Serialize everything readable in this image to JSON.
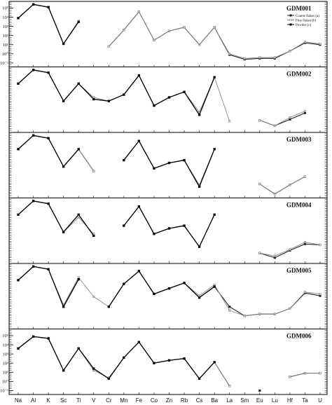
{
  "chart_data": {
    "type": "line",
    "categories": [
      "Na",
      "Al",
      "K",
      "Sc",
      "Ti",
      "V",
      "Cr",
      "Mn",
      "Fe",
      "Co",
      "Zn",
      "Rb",
      "Cs",
      "Ba",
      "La",
      "Sm",
      "Eu",
      "Lu",
      "Hf",
      "Ta",
      "U"
    ],
    "ytick_labels": [
      "10⁵",
      "10⁴",
      "10³",
      "10²",
      "10¹",
      "10⁰",
      "10⁻¹"
    ],
    "ytick_values": [
      5,
      4,
      3,
      2,
      1,
      0,
      -1
    ],
    "legend": [
      {
        "label": "Coarse flakes (a)",
        "color": "#222222"
      },
      {
        "label": "Fine flakes (b)",
        "color": "#888888"
      },
      {
        "label": "Powder (c)",
        "color": "#000000"
      }
    ],
    "panels": [
      {
        "title": "GDM001",
        "ylim": [
          -1.2,
          5.5
        ],
        "series": [
          {
            "values": [
              3.9,
              5.4,
              5.1,
              1.1,
              3.5,
              null,
              0.8,
              2.6,
              4.6,
              1.5,
              2.5,
              2.9,
              1.0,
              2.9,
              -0.1,
              -0.6,
              -0.5,
              -0.5,
              0.3,
              1.2,
              1.0
            ]
          },
          {
            "values": [
              3.9,
              5.4,
              5.1,
              1.1,
              3.6,
              null,
              0.8,
              2.6,
              4.6,
              1.5,
              2.5,
              2.9,
              1.0,
              2.9,
              0.0,
              -0.5,
              -0.4,
              -0.4,
              0.3,
              1.3,
              1.1
            ]
          },
          {
            "values": [
              3.9,
              5.4,
              5.1,
              1.1,
              3.5,
              null,
              null,
              null,
              null,
              null,
              null,
              null,
              null,
              null,
              null,
              null,
              null,
              null,
              null,
              null,
              null
            ]
          }
        ]
      },
      {
        "title": "GDM002",
        "ylim": [
          -1.2,
          5.5
        ],
        "series": [
          {
            "values": [
              3.9,
              5.4,
              5.1,
              2.0,
              3.9,
              2.2,
              2.0,
              2.7,
              4.8,
              1.5,
              2.4,
              3.0,
              0.5,
              4.6,
              null,
              null,
              -0.1,
              -0.7,
              0.0,
              0.7,
              null
            ]
          },
          {
            "values": [
              3.9,
              5.4,
              5.1,
              2.0,
              3.9,
              2.4,
              2.0,
              2.7,
              4.8,
              1.5,
              2.4,
              3.0,
              0.8,
              4.6,
              -0.2,
              null,
              -0.1,
              -0.7,
              0.2,
              0.9,
              null
            ]
          },
          {
            "values": [
              3.9,
              5.4,
              5.1,
              2.0,
              3.9,
              2.2,
              2.0,
              2.7,
              4.8,
              1.5,
              2.4,
              3.0,
              0.5,
              4.6,
              null,
              null,
              null,
              null,
              null,
              null,
              null
            ]
          }
        ]
      },
      {
        "title": "GDM003",
        "ylim": [
          -1.2,
          5.5
        ],
        "series": [
          {
            "values": [
              3.9,
              5.4,
              5.1,
              2.0,
              3.9,
              1.5,
              null,
              2.7,
              4.8,
              1.8,
              2.4,
              2.7,
              -0.2,
              3.9,
              null,
              null,
              0.1,
              -1.0,
              0.0,
              0.9,
              null
            ]
          },
          {
            "values": [
              3.9,
              5.4,
              5.1,
              2.0,
              3.9,
              1.5,
              null,
              2.7,
              4.8,
              1.8,
              2.4,
              2.7,
              0.0,
              3.9,
              null,
              null,
              0.1,
              -1.0,
              0.0,
              0.9,
              null
            ]
          },
          {
            "values": [
              3.9,
              5.4,
              5.1,
              2.0,
              3.9,
              null,
              null,
              2.7,
              4.8,
              1.8,
              2.4,
              2.7,
              -0.2,
              3.9,
              null,
              null,
              null,
              null,
              null,
              null,
              null
            ]
          }
        ]
      },
      {
        "title": "GDM004",
        "ylim": [
          -1.2,
          5.5
        ],
        "series": [
          {
            "values": [
              3.9,
              5.4,
              5.1,
              2.0,
              3.9,
              1.6,
              null,
              2.7,
              4.8,
              1.8,
              2.4,
              2.7,
              0.4,
              3.9,
              null,
              null,
              -0.3,
              -0.8,
              0.0,
              0.7,
              0.6
            ]
          },
          {
            "values": [
              3.9,
              5.4,
              5.1,
              2.0,
              3.6,
              1.8,
              null,
              2.7,
              4.8,
              1.8,
              2.4,
              2.7,
              0.4,
              3.9,
              null,
              null,
              -0.3,
              -0.6,
              0.1,
              0.9,
              0.6
            ]
          },
          {
            "values": [
              3.9,
              5.4,
              5.1,
              2.0,
              3.9,
              1.6,
              null,
              2.7,
              4.8,
              1.8,
              2.4,
              2.7,
              0.4,
              3.9,
              null,
              null,
              null,
              null,
              null,
              null,
              null
            ]
          }
        ]
      },
      {
        "title": "GDM005",
        "ylim": [
          -1.2,
          5.5
        ],
        "series": [
          {
            "values": [
              3.9,
              5.4,
              5.1,
              1.0,
              4.0,
              null,
              1.0,
              3.5,
              4.9,
              2.4,
              3.0,
              3.6,
              2.0,
              3.2,
              1.0,
              0.0,
              0.2,
              0.2,
              0.8,
              2.5,
              2.2
            ]
          },
          {
            "values": [
              3.9,
              5.4,
              5.1,
              1.2,
              4.2,
              2.1,
              1.0,
              3.5,
              4.9,
              2.4,
              3.0,
              3.6,
              2.2,
              3.4,
              0.6,
              0.0,
              0.2,
              0.2,
              0.8,
              2.6,
              2.4
            ]
          },
          {
            "values": [
              3.9,
              5.4,
              5.1,
              1.0,
              4.0,
              null,
              1.0,
              3.5,
              4.9,
              2.4,
              3.0,
              3.6,
              2.0,
              3.2,
              null,
              null,
              null,
              null,
              null,
              null,
              null
            ]
          }
        ]
      },
      {
        "title": "GDM006",
        "ylim": [
          -1.2,
          5.5
        ],
        "series": [
          {
            "values": [
              3.6,
              4.9,
              4.7,
              1.2,
              3.6,
              1.4,
              0.3,
              2.6,
              4.3,
              2.0,
              2.3,
              2.5,
              0.3,
              2.1,
              -0.5,
              null,
              -1.0,
              null,
              0.5,
              0.9,
              0.9
            ]
          },
          {
            "values": [
              3.6,
              4.9,
              4.7,
              1.2,
              3.6,
              1.2,
              0.4,
              2.6,
              4.3,
              2.0,
              2.3,
              2.5,
              0.3,
              2.1,
              -0.5,
              null,
              null,
              null,
              0.5,
              0.9,
              0.9
            ]
          },
          {
            "values": [
              3.6,
              4.9,
              4.7,
              1.2,
              3.6,
              1.4,
              0.3,
              2.6,
              4.3,
              2.0,
              2.3,
              2.5,
              0.3,
              2.1,
              null,
              null,
              null,
              null,
              null,
              null,
              null
            ]
          }
        ]
      }
    ]
  }
}
